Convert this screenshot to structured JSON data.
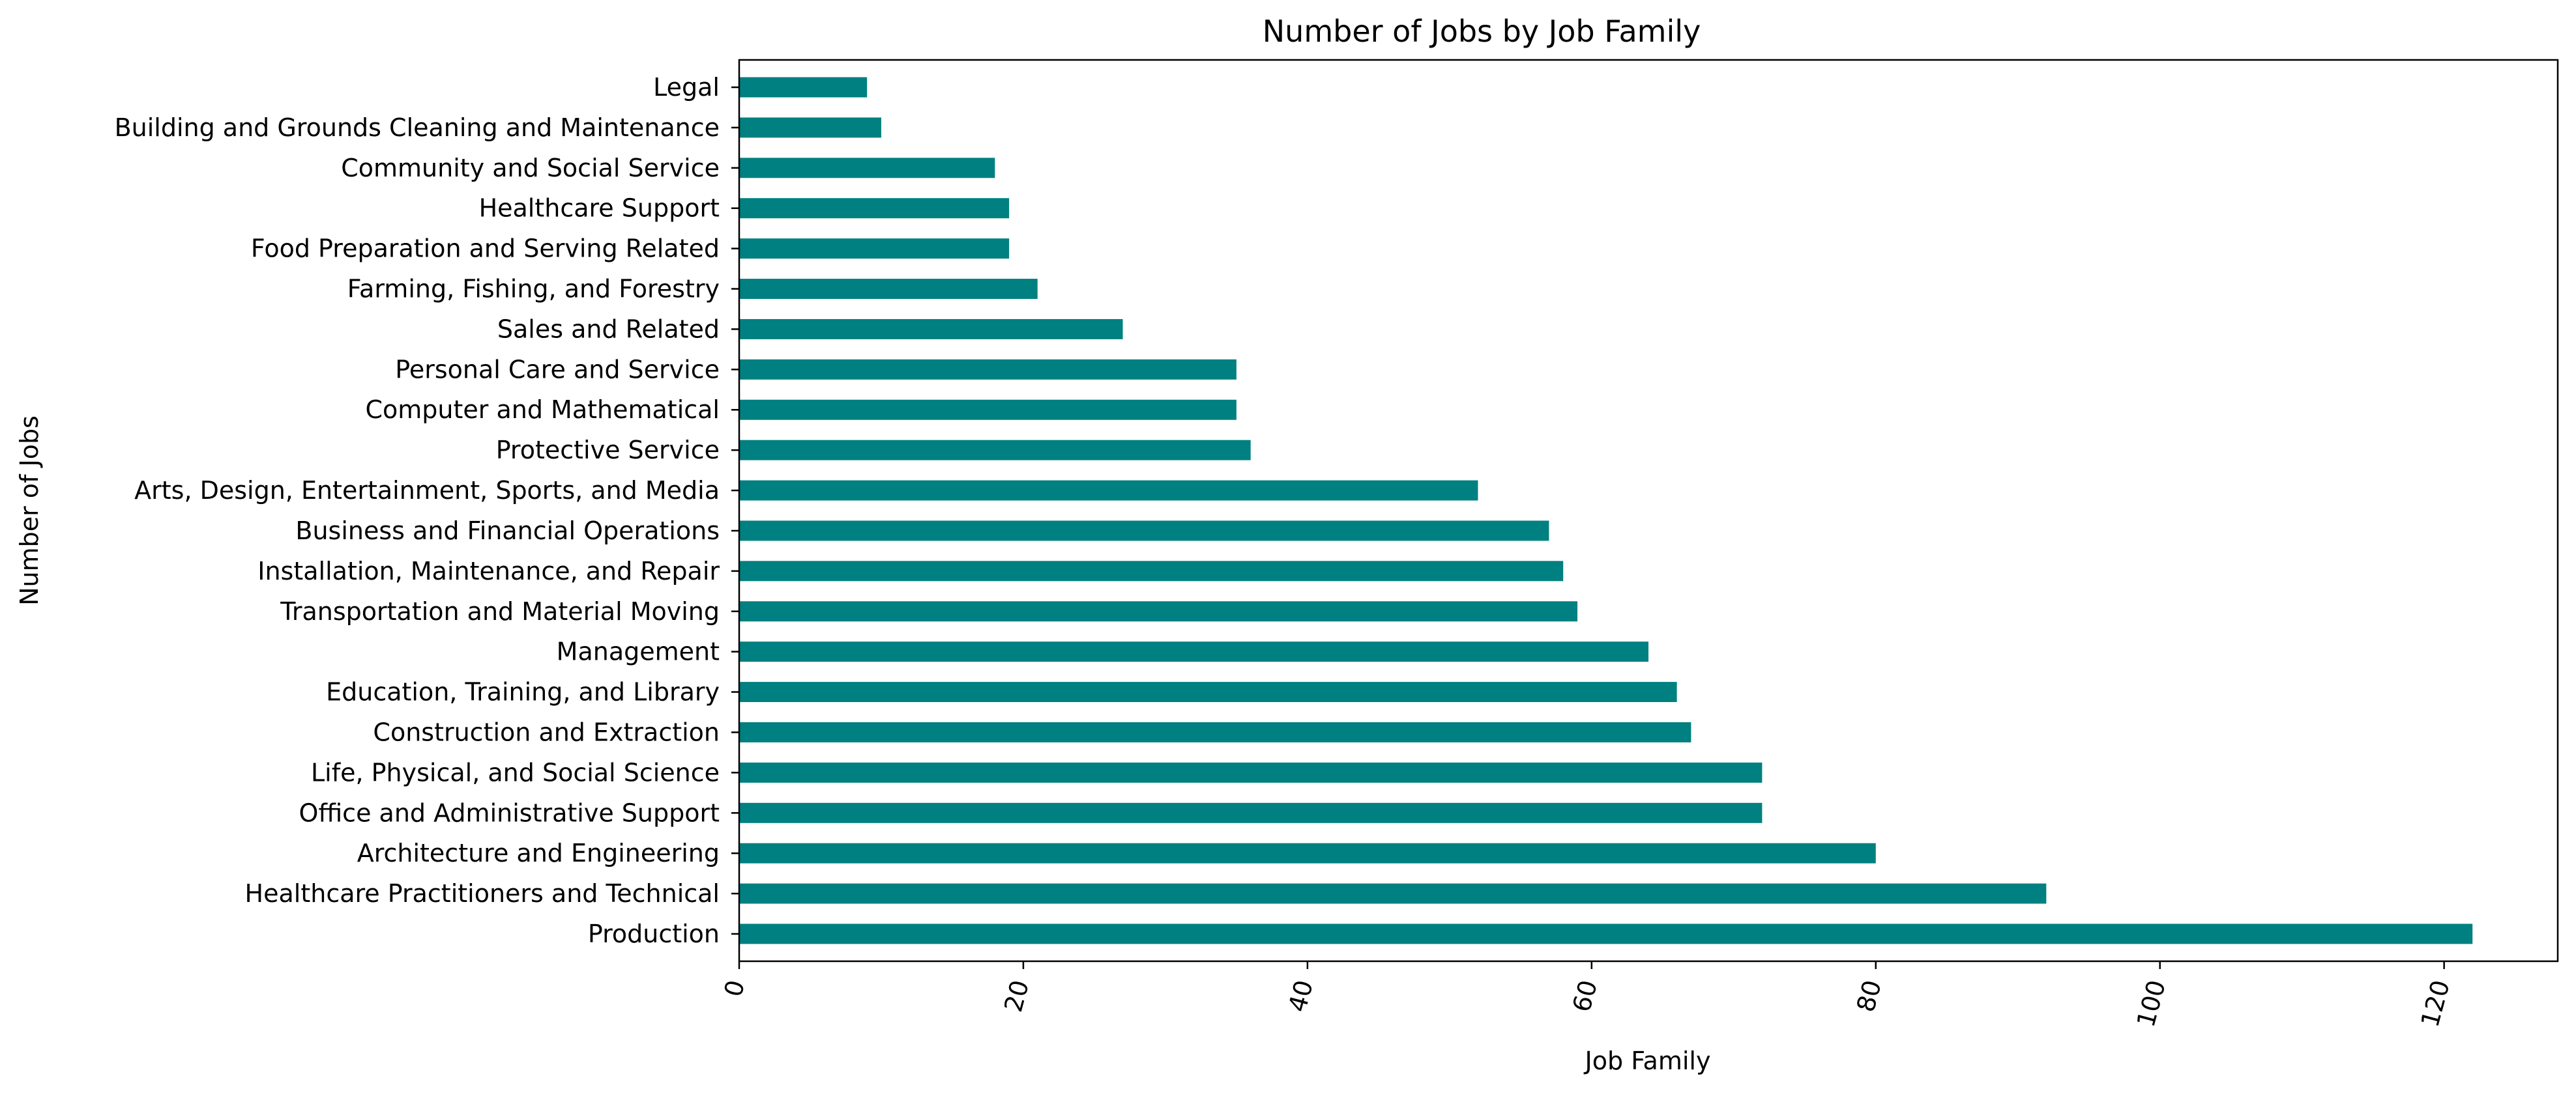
{
  "chart_data": {
    "type": "bar",
    "orientation": "horizontal",
    "title": "Number of Jobs by Job Family",
    "xlabel": "Job Family",
    "ylabel": "Number of Jobs",
    "bar_color": "#008080",
    "xlim": [
      0,
      128
    ],
    "xticks": [
      0,
      20,
      40,
      60,
      80,
      100,
      120
    ],
    "grid": false,
    "legend": "none",
    "categories": [
      "Legal",
      "Building and Grounds Cleaning and Maintenance",
      "Community and Social Service",
      "Healthcare Support",
      "Food Preparation and Serving Related",
      "Farming, Fishing, and Forestry",
      "Sales and Related",
      "Personal Care and Service",
      "Computer and Mathematical",
      "Protective Service",
      "Arts, Design, Entertainment, Sports, and Media",
      "Business and Financial Operations",
      "Installation, Maintenance, and Repair",
      "Transportation and Material Moving",
      "Management",
      "Education, Training, and Library",
      "Construction and Extraction",
      "Life, Physical, and Social Science",
      "Office and Administrative Support",
      "Architecture and Engineering",
      "Healthcare Practitioners and Technical",
      "Production"
    ],
    "values": [
      9,
      10,
      18,
      19,
      19,
      21,
      27,
      35,
      35,
      36,
      52,
      57,
      58,
      59,
      64,
      66,
      67,
      72,
      72,
      80,
      92,
      122
    ]
  }
}
